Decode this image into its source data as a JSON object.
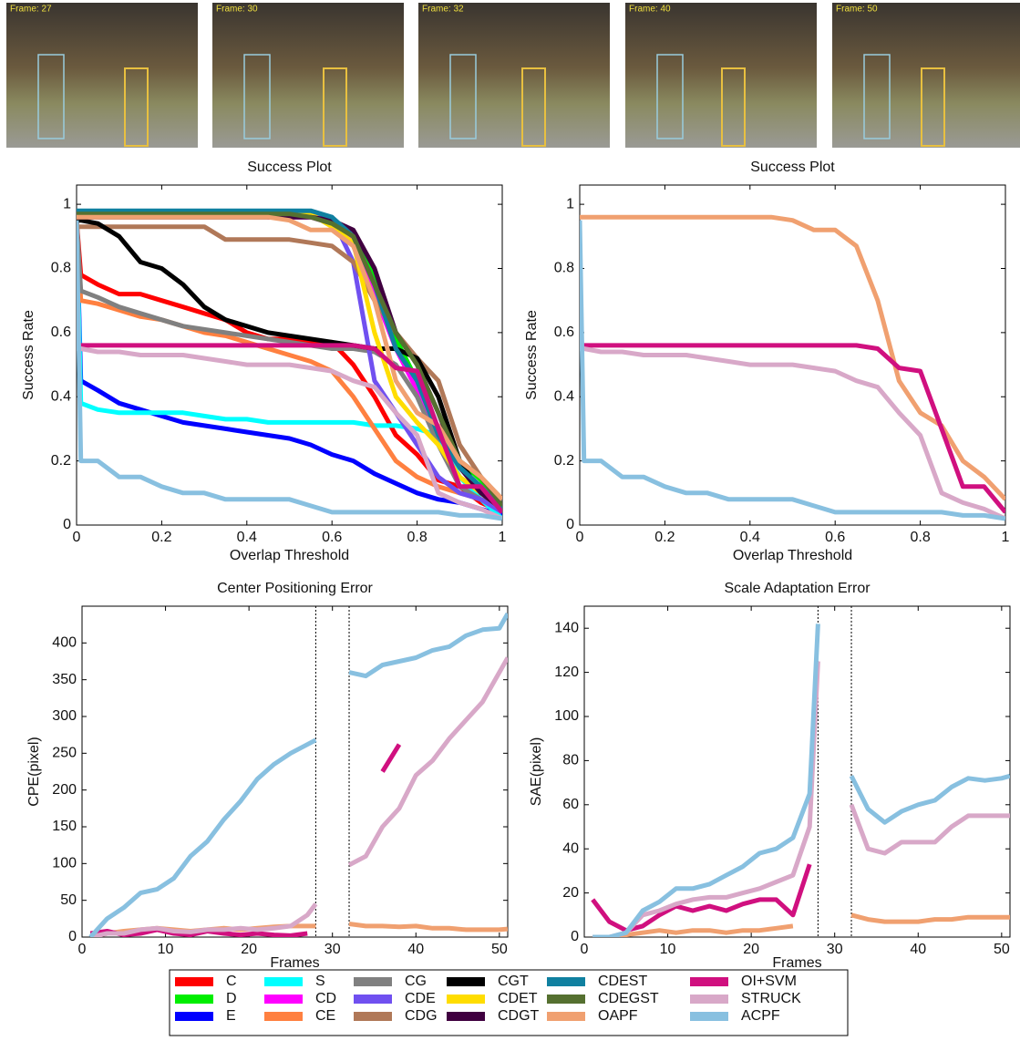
{
  "frames": [
    "Frame: 27",
    "Frame: 30",
    "Frame: 32",
    "Frame: 40",
    "Frame: 50"
  ],
  "chart_data": [
    {
      "type": "line",
      "title": "Success Plot",
      "xlabel": "Overlap Threshold",
      "ylabel": "Success Rate",
      "xlim": [
        0,
        1
      ],
      "ylim": [
        0,
        1.06
      ],
      "xticks": [
        0,
        0.2,
        0.4,
        0.6,
        0.8,
        1
      ],
      "yticks": [
        0,
        0.2,
        0.4,
        0.6,
        0.8,
        1
      ],
      "x": [
        0,
        0.01,
        0.05,
        0.1,
        0.15,
        0.2,
        0.25,
        0.3,
        0.35,
        0.4,
        0.45,
        0.5,
        0.55,
        0.6,
        0.65,
        0.7,
        0.75,
        0.8,
        0.85,
        0.9,
        0.95,
        1
      ],
      "series": [
        {
          "name": "C",
          "color": "#ff0000",
          "values": [
            0.95,
            0.78,
            0.75,
            0.72,
            0.72,
            0.7,
            0.68,
            0.66,
            0.64,
            0.6,
            0.58,
            0.58,
            0.57,
            0.57,
            0.5,
            0.4,
            0.28,
            0.22,
            0.14,
            0.12,
            0.07,
            0.04
          ]
        },
        {
          "name": "D",
          "color": "#00ee00",
          "values": [
            0.97,
            0.97,
            0.97,
            0.97,
            0.97,
            0.97,
            0.97,
            0.97,
            0.97,
            0.97,
            0.97,
            0.97,
            0.97,
            0.95,
            0.9,
            0.78,
            0.58,
            0.45,
            0.3,
            0.2,
            0.14,
            0.05
          ]
        },
        {
          "name": "E",
          "color": "#0000ff",
          "values": [
            0.95,
            0.45,
            0.42,
            0.38,
            0.36,
            0.34,
            0.32,
            0.31,
            0.3,
            0.29,
            0.28,
            0.27,
            0.25,
            0.22,
            0.2,
            0.16,
            0.13,
            0.1,
            0.08,
            0.07,
            0.05,
            0.03
          ]
        },
        {
          "name": "S",
          "color": "#00ffff",
          "values": [
            0.95,
            0.38,
            0.36,
            0.35,
            0.35,
            0.35,
            0.35,
            0.34,
            0.33,
            0.33,
            0.32,
            0.32,
            0.32,
            0.32,
            0.32,
            0.31,
            0.31,
            0.3,
            0.28,
            0.15,
            0.08,
            0.02
          ]
        },
        {
          "name": "CD",
          "color": "#ff00ff",
          "values": [
            0.97,
            0.97,
            0.97,
            0.97,
            0.97,
            0.97,
            0.97,
            0.97,
            0.97,
            0.97,
            0.96,
            0.96,
            0.96,
            0.94,
            0.88,
            0.72,
            0.55,
            0.42,
            0.28,
            0.18,
            0.12,
            0.05
          ]
        },
        {
          "name": "CE",
          "color": "#ff8040",
          "values": [
            0.95,
            0.7,
            0.69,
            0.67,
            0.65,
            0.64,
            0.62,
            0.6,
            0.59,
            0.57,
            0.55,
            0.53,
            0.51,
            0.48,
            0.4,
            0.3,
            0.2,
            0.15,
            0.12,
            0.1,
            0.08,
            0.05
          ]
        },
        {
          "name": "CG",
          "color": "#808080",
          "values": [
            0.95,
            0.73,
            0.71,
            0.68,
            0.66,
            0.64,
            0.62,
            0.61,
            0.6,
            0.59,
            0.58,
            0.57,
            0.56,
            0.55,
            0.55,
            0.54,
            0.5,
            0.4,
            0.25,
            0.12,
            0.08,
            0.05
          ]
        },
        {
          "name": "CDE",
          "color": "#7050f0",
          "values": [
            0.97,
            0.97,
            0.97,
            0.97,
            0.97,
            0.97,
            0.97,
            0.97,
            0.97,
            0.97,
            0.97,
            0.97,
            0.97,
            0.96,
            0.82,
            0.45,
            0.35,
            0.25,
            0.15,
            0.1,
            0.08,
            0.04
          ]
        },
        {
          "name": "CDG",
          "color": "#b07858",
          "values": [
            0.93,
            0.93,
            0.93,
            0.93,
            0.93,
            0.93,
            0.93,
            0.93,
            0.89,
            0.89,
            0.89,
            0.89,
            0.88,
            0.87,
            0.82,
            0.7,
            0.6,
            0.52,
            0.45,
            0.25,
            0.15,
            0.08
          ]
        },
        {
          "name": "CGT",
          "color": "#000000",
          "values": [
            0.95,
            0.95,
            0.94,
            0.9,
            0.82,
            0.8,
            0.75,
            0.68,
            0.64,
            0.62,
            0.6,
            0.59,
            0.58,
            0.57,
            0.56,
            0.55,
            0.55,
            0.52,
            0.4,
            0.2,
            0.1,
            0.05
          ]
        },
        {
          "name": "CDET",
          "color": "#ffdd00",
          "values": [
            0.97,
            0.97,
            0.97,
            0.97,
            0.97,
            0.97,
            0.97,
            0.97,
            0.97,
            0.97,
            0.97,
            0.97,
            0.97,
            0.93,
            0.88,
            0.6,
            0.4,
            0.32,
            0.25,
            0.15,
            0.1,
            0.05
          ]
        },
        {
          "name": "CDGT",
          "color": "#400040",
          "values": [
            0.96,
            0.96,
            0.96,
            0.96,
            0.96,
            0.96,
            0.96,
            0.96,
            0.96,
            0.96,
            0.96,
            0.96,
            0.96,
            0.95,
            0.92,
            0.8,
            0.6,
            0.5,
            0.35,
            0.18,
            0.1,
            0.05
          ]
        },
        {
          "name": "CDEST",
          "color": "#1080a0",
          "values": [
            0.98,
            0.98,
            0.98,
            0.98,
            0.98,
            0.98,
            0.98,
            0.98,
            0.98,
            0.98,
            0.98,
            0.98,
            0.98,
            0.96,
            0.9,
            0.75,
            0.55,
            0.45,
            0.28,
            0.18,
            0.12,
            0.05
          ]
        },
        {
          "name": "CDEGST",
          "color": "#557030",
          "values": [
            0.97,
            0.97,
            0.97,
            0.97,
            0.97,
            0.97,
            0.97,
            0.97,
            0.97,
            0.97,
            0.97,
            0.97,
            0.96,
            0.94,
            0.9,
            0.75,
            0.6,
            0.5,
            0.35,
            0.2,
            0.15,
            0.06
          ]
        },
        {
          "name": "OAPF",
          "color": "#f0a070",
          "values": [
            0.96,
            0.96,
            0.96,
            0.96,
            0.96,
            0.96,
            0.96,
            0.96,
            0.96,
            0.96,
            0.96,
            0.95,
            0.92,
            0.92,
            0.87,
            0.7,
            0.45,
            0.35,
            0.31,
            0.2,
            0.15,
            0.08
          ]
        },
        {
          "name": "OI+SVM",
          "color": "#d0107f",
          "values": [
            0.56,
            0.56,
            0.56,
            0.56,
            0.56,
            0.56,
            0.56,
            0.56,
            0.56,
            0.56,
            0.56,
            0.56,
            0.56,
            0.56,
            0.56,
            0.55,
            0.49,
            0.48,
            0.3,
            0.12,
            0.12,
            0.04
          ]
        },
        {
          "name": "STRUCK",
          "color": "#d8a8c8",
          "values": [
            0.55,
            0.55,
            0.54,
            0.54,
            0.53,
            0.53,
            0.53,
            0.52,
            0.51,
            0.5,
            0.5,
            0.5,
            0.49,
            0.48,
            0.45,
            0.43,
            0.35,
            0.28,
            0.1,
            0.07,
            0.05,
            0.02
          ]
        },
        {
          "name": "ACPF",
          "color": "#88c0e0",
          "values": [
            0.95,
            0.2,
            0.2,
            0.15,
            0.15,
            0.12,
            0.1,
            0.1,
            0.08,
            0.08,
            0.08,
            0.08,
            0.06,
            0.04,
            0.04,
            0.04,
            0.04,
            0.04,
            0.04,
            0.03,
            0.03,
            0.02
          ]
        }
      ]
    },
    {
      "type": "line",
      "title": "Success Plot",
      "xlabel": "Overlap Threshold",
      "ylabel": "Success Rate",
      "xlim": [
        0,
        1
      ],
      "ylim": [
        0,
        1.06
      ],
      "xticks": [
        0,
        0.2,
        0.4,
        0.6,
        0.8,
        1
      ],
      "yticks": [
        0,
        0.2,
        0.4,
        0.6,
        0.8,
        1
      ],
      "x": [
        0,
        0.01,
        0.05,
        0.1,
        0.15,
        0.2,
        0.25,
        0.3,
        0.35,
        0.4,
        0.45,
        0.5,
        0.55,
        0.6,
        0.65,
        0.7,
        0.75,
        0.8,
        0.85,
        0.9,
        0.95,
        1
      ],
      "series": [
        {
          "name": "OAPF",
          "color": "#f0a070",
          "values": [
            0.96,
            0.96,
            0.96,
            0.96,
            0.96,
            0.96,
            0.96,
            0.96,
            0.96,
            0.96,
            0.96,
            0.95,
            0.92,
            0.92,
            0.87,
            0.7,
            0.45,
            0.35,
            0.31,
            0.2,
            0.15,
            0.08
          ]
        },
        {
          "name": "OI+SVM",
          "color": "#d0107f",
          "values": [
            0.56,
            0.56,
            0.56,
            0.56,
            0.56,
            0.56,
            0.56,
            0.56,
            0.56,
            0.56,
            0.56,
            0.56,
            0.56,
            0.56,
            0.56,
            0.55,
            0.49,
            0.48,
            0.3,
            0.12,
            0.12,
            0.04
          ]
        },
        {
          "name": "STRUCK",
          "color": "#d8a8c8",
          "values": [
            0.55,
            0.55,
            0.54,
            0.54,
            0.53,
            0.53,
            0.53,
            0.52,
            0.51,
            0.5,
            0.5,
            0.5,
            0.49,
            0.48,
            0.45,
            0.43,
            0.35,
            0.28,
            0.1,
            0.07,
            0.05,
            0.02
          ]
        },
        {
          "name": "ACPF",
          "color": "#88c0e0",
          "values": [
            0.95,
            0.2,
            0.2,
            0.15,
            0.15,
            0.12,
            0.1,
            0.1,
            0.08,
            0.08,
            0.08,
            0.08,
            0.06,
            0.04,
            0.04,
            0.04,
            0.04,
            0.04,
            0.04,
            0.03,
            0.03,
            0.02
          ]
        }
      ]
    },
    {
      "type": "line",
      "title": "Center Positioning Error",
      "xlabel": "Frames",
      "ylabel": "CPE(pixel)",
      "xlim": [
        0,
        51
      ],
      "ylim": [
        0,
        450
      ],
      "xticks": [
        0,
        10,
        20,
        30,
        40,
        50
      ],
      "yticks": [
        0,
        50,
        100,
        150,
        200,
        250,
        300,
        350,
        400
      ],
      "vlines": [
        28,
        32
      ],
      "x": [
        1,
        3,
        5,
        7,
        9,
        11,
        13,
        15,
        17,
        19,
        21,
        23,
        25,
        27,
        28,
        30,
        32,
        34,
        36,
        38,
        40,
        42,
        44,
        46,
        48,
        50,
        51
      ],
      "series": [
        {
          "name": "OAPF",
          "color": "#f0a070",
          "values": [
            0,
            5,
            8,
            10,
            12,
            10,
            8,
            10,
            12,
            10,
            12,
            14,
            15,
            15,
            15,
            null,
            18,
            15,
            15,
            14,
            15,
            12,
            12,
            10,
            10,
            10,
            11
          ]
        },
        {
          "name": "OI+SVM",
          "color": "#d0107f",
          "values": [
            5,
            8,
            3,
            5,
            10,
            5,
            3,
            8,
            5,
            3,
            5,
            3,
            2,
            5,
            null,
            null,
            null,
            null,
            225,
            262,
            null,
            null,
            null,
            null,
            null,
            null,
            null
          ]
        },
        {
          "name": "STRUCK",
          "color": "#d8a8c8",
          "values": [
            0,
            5,
            5,
            10,
            12,
            8,
            7,
            10,
            10,
            12,
            10,
            12,
            15,
            30,
            45,
            null,
            98,
            110,
            150,
            175,
            220,
            240,
            270,
            295,
            320,
            360,
            380
          ]
        },
        {
          "name": "ACPF",
          "color": "#88c0e0",
          "values": [
            0,
            25,
            40,
            60,
            65,
            80,
            110,
            130,
            160,
            185,
            215,
            235,
            250,
            262,
            268,
            null,
            360,
            355,
            370,
            375,
            380,
            390,
            395,
            410,
            418,
            420,
            440
          ]
        }
      ]
    },
    {
      "type": "line",
      "title": "Scale Adaptation Error",
      "xlabel": "Frames",
      "ylabel": "SAE(pixel)",
      "xlim": [
        0,
        51
      ],
      "ylim": [
        0,
        150
      ],
      "xticks": [
        0,
        10,
        20,
        30,
        40,
        50
      ],
      "yticks": [
        0,
        20,
        40,
        60,
        80,
        100,
        120,
        140
      ],
      "vlines": [
        28,
        32
      ],
      "x": [
        1,
        3,
        5,
        7,
        9,
        11,
        13,
        15,
        17,
        19,
        21,
        23,
        25,
        27,
        28,
        30,
        32,
        34,
        36,
        38,
        40,
        42,
        44,
        46,
        48,
        50,
        51
      ],
      "series": [
        {
          "name": "OAPF",
          "color": "#f0a070",
          "values": [
            0,
            0,
            1,
            2,
            3,
            2,
            3,
            3,
            2,
            3,
            3,
            4,
            5,
            null,
            null,
            null,
            10,
            8,
            7,
            7,
            7,
            8,
            8,
            9,
            9,
            9,
            9
          ]
        },
        {
          "name": "OI+SVM",
          "color": "#d0107f",
          "values": [
            17,
            7,
            3,
            5,
            10,
            14,
            12,
            14,
            12,
            15,
            17,
            17,
            10,
            33,
            null,
            null,
            null,
            null,
            null,
            null,
            null,
            null,
            null,
            null,
            null,
            null,
            null
          ]
        },
        {
          "name": "STRUCK",
          "color": "#d8a8c8",
          "values": [
            0,
            0,
            2,
            10,
            12,
            15,
            17,
            18,
            18,
            20,
            22,
            25,
            28,
            50,
            125,
            null,
            60,
            40,
            38,
            43,
            43,
            43,
            50,
            55,
            55,
            55,
            55
          ]
        },
        {
          "name": "ACPF",
          "color": "#88c0e0",
          "values": [
            0,
            0,
            2,
            12,
            16,
            22,
            22,
            24,
            28,
            32,
            38,
            40,
            45,
            65,
            142,
            null,
            73,
            58,
            52,
            57,
            60,
            62,
            68,
            72,
            71,
            72,
            73
          ]
        }
      ]
    }
  ]
}
